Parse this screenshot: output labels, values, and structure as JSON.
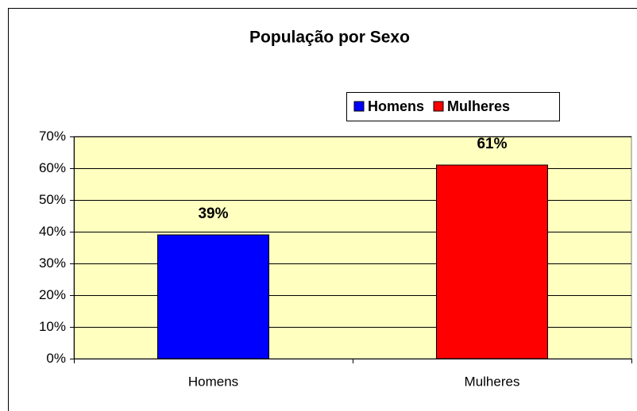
{
  "chart_data": {
    "type": "bar",
    "title": "População por Sexo",
    "categories": [
      "Homens",
      "Mulheres"
    ],
    "values": [
      39,
      61
    ],
    "value_labels": [
      "39%",
      "61%"
    ],
    "colors": [
      "#0000ff",
      "#ff0000"
    ],
    "ylim": [
      0,
      70
    ],
    "yticks": [
      {
        "value": 0,
        "label": "0%"
      },
      {
        "value": 10,
        "label": "10%"
      },
      {
        "value": 20,
        "label": "20%"
      },
      {
        "value": 30,
        "label": "30%"
      },
      {
        "value": 40,
        "label": "40%"
      },
      {
        "value": 50,
        "label": "50%"
      },
      {
        "value": 60,
        "label": "60%"
      },
      {
        "value": 70,
        "label": "70%"
      }
    ],
    "grid": true,
    "legend": "top-right"
  }
}
